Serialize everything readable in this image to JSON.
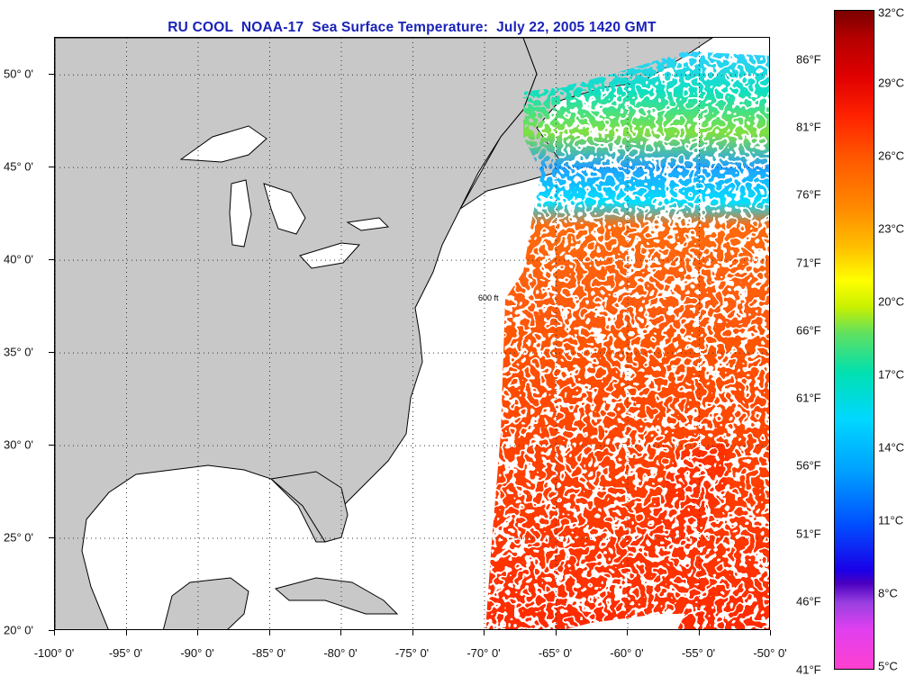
{
  "title": "RU COOL  NOAA-17  Sea Surface Temperature:  July 22, 2005 1420 GMT",
  "map": {
    "extent": {
      "lon_min": -100,
      "lon_max": -50,
      "lat_min": 20,
      "lat_max": 52
    },
    "lat_labels": [
      "50° 0'",
      "45° 0'",
      "40° 0'",
      "35° 0'",
      "30° 0'",
      "25° 0'",
      "20° 0'"
    ],
    "lon_labels": [
      "-100° 0'",
      "-95° 0'",
      "-90° 0'",
      "-85° 0'",
      "-80° 0'",
      "-75° 0'",
      "-70° 0'",
      "-65° 0'",
      "-60° 0'",
      "-55° 0'",
      "-50° 0'"
    ],
    "isobath_label": "600 ft",
    "colors": {
      "land": "#c8c8c8",
      "no_data": "#ffffff",
      "warm": "#ff3a00",
      "cool": "#00c8f0",
      "cold": "#0050ff"
    }
  },
  "colorbar": {
    "fahrenheit_labels": [
      "86°F",
      "81°F",
      "76°F",
      "71°F",
      "66°F",
      "61°F",
      "56°F",
      "51°F",
      "46°F",
      "41°F"
    ],
    "celsius_labels": [
      "32°C",
      "29°C",
      "26°C",
      "23°C",
      "20°C",
      "17°C",
      "14°C",
      "11°C",
      "8°C",
      "5°C"
    ],
    "range_c": [
      5,
      32
    ]
  }
}
